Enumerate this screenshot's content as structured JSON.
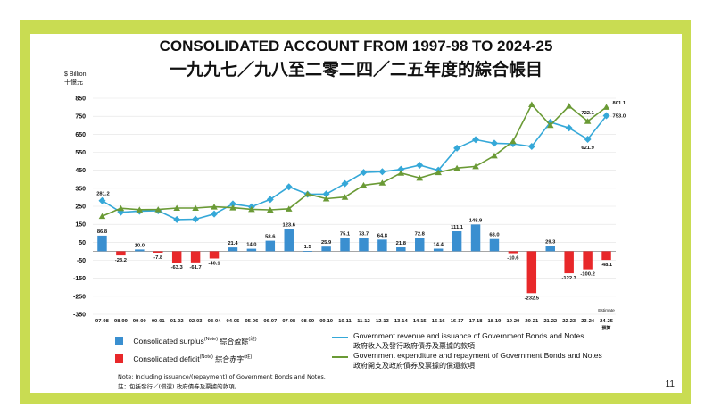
{
  "page": {
    "title_en": "CONSOLIDATED ACCOUNT FROM 1997-98 TO 2024-25",
    "title_zh": "一九九七／九八至二零二四／二五年度的綜合帳目",
    "page_number": "11",
    "colors": {
      "frame": "#c9dc52",
      "surplus": "#3a8fd0",
      "deficit": "#e8282a",
      "revenue_line": "#35a8d8",
      "expenditure_line": "#6a9a35"
    }
  },
  "legend": {
    "surplus": {
      "label": "Consolidated surplus",
      "sup": "(Note)",
      "zh": "綜合盈餘",
      "zh_sup": "(註)",
      "icon": "blue-square-icon"
    },
    "deficit": {
      "label": "Consolidated deficit",
      "sup": "(Note)",
      "zh": "綜合赤字",
      "zh_sup": "(註)",
      "icon": "red-square-icon"
    },
    "revenue": {
      "label": "Government revenue and issuance of Government Bonds and Notes",
      "zh": "政府收入及發行政府債券及票據的款項"
    },
    "expenditure": {
      "label": "Government expenditure and repayment of Government Bonds and Notes",
      "zh": "政府開支及政府債券及票據的償還款項"
    }
  },
  "notes": {
    "en": "Note: Including issuance/(repayment) of Government Bonds and Notes.",
    "zh": "註：包括發行／(償還) 政府債券及票據的款項。"
  },
  "chart_data": {
    "type": "bar",
    "ylabel_en": "$ Billion",
    "ylabel_zh": "十億元",
    "ylim": [
      -350,
      850
    ],
    "yticks": [
      -350,
      -250,
      -150,
      -50,
      50,
      150,
      250,
      350,
      450,
      550,
      650,
      750,
      850
    ],
    "categories": [
      "97-98",
      "98-99",
      "99-00",
      "00-01",
      "01-02",
      "02-03",
      "03-04",
      "04-05",
      "05-06",
      "06-07",
      "07-08",
      "08-09",
      "09-10",
      "10-11",
      "11-12",
      "12-13",
      "13-14",
      "14-15",
      "15-16",
      "16-17",
      "17-18",
      "18-19",
      "19-20",
      "20-21",
      "21-22",
      "22-23",
      "23-24",
      "24-25"
    ],
    "estimate_label": "Estimate",
    "estimate_label_zh": "預算",
    "series": [
      {
        "name": "Consolidated surplus/deficit",
        "values": [
          86.8,
          -23.2,
          10.0,
          -7.8,
          -63.3,
          -61.7,
          -40.1,
          21.4,
          14.0,
          58.6,
          123.6,
          1.5,
          25.9,
          75.1,
          73.7,
          64.8,
          21.8,
          72.8,
          14.4,
          111.1,
          148.9,
          68.0,
          -10.6,
          -232.5,
          29.3,
          -122.3,
          -100.2,
          -48.1
        ],
        "labels": [
          "86.8",
          "-23.2",
          "10.0",
          "-7.8",
          "-63.3",
          "-61.7",
          "-40.1",
          "21.4",
          "14.0",
          "58.6",
          "123.6",
          "1.5",
          "25.9",
          "75.1",
          "73.7",
          "64.8",
          "21.8",
          "72.8",
          "14.4",
          "111.1",
          "148.9",
          "68.0",
          "-10.6",
          "-232.5",
          "29.3",
          "-122.3",
          "-100.2",
          "-48.1"
        ]
      },
      {
        "name": "Government revenue and issuance of Government Bonds and Notes",
        "values": [
          281.2,
          217,
          223,
          225,
          176,
          178,
          207,
          263,
          247,
          288,
          358,
          317,
          318,
          376,
          438,
          442,
          455,
          478,
          450,
          573,
          620,
          600,
          597,
          582,
          717,
          685,
          621.9,
          753.0
        ]
      },
      {
        "name": "Government expenditure and repayment of Government Bonds and Notes",
        "values": [
          195,
          239,
          231,
          232,
          240,
          240,
          247,
          242,
          233,
          230,
          236,
          318,
          292,
          301,
          367,
          380,
          435,
          407,
          438,
          462,
          471,
          531,
          611,
          815,
          700,
          807,
          722.1,
          801.1
        ]
      }
    ],
    "line_labels": [
      {
        "series": 1,
        "index": 0,
        "text": "281.2"
      },
      {
        "series": 1,
        "index": 26,
        "text": "621.9"
      },
      {
        "series": 1,
        "index": 27,
        "text": "753.0"
      },
      {
        "series": 2,
        "index": 26,
        "text": "722.1"
      },
      {
        "series": 2,
        "index": 27,
        "text": "801.1"
      }
    ]
  }
}
